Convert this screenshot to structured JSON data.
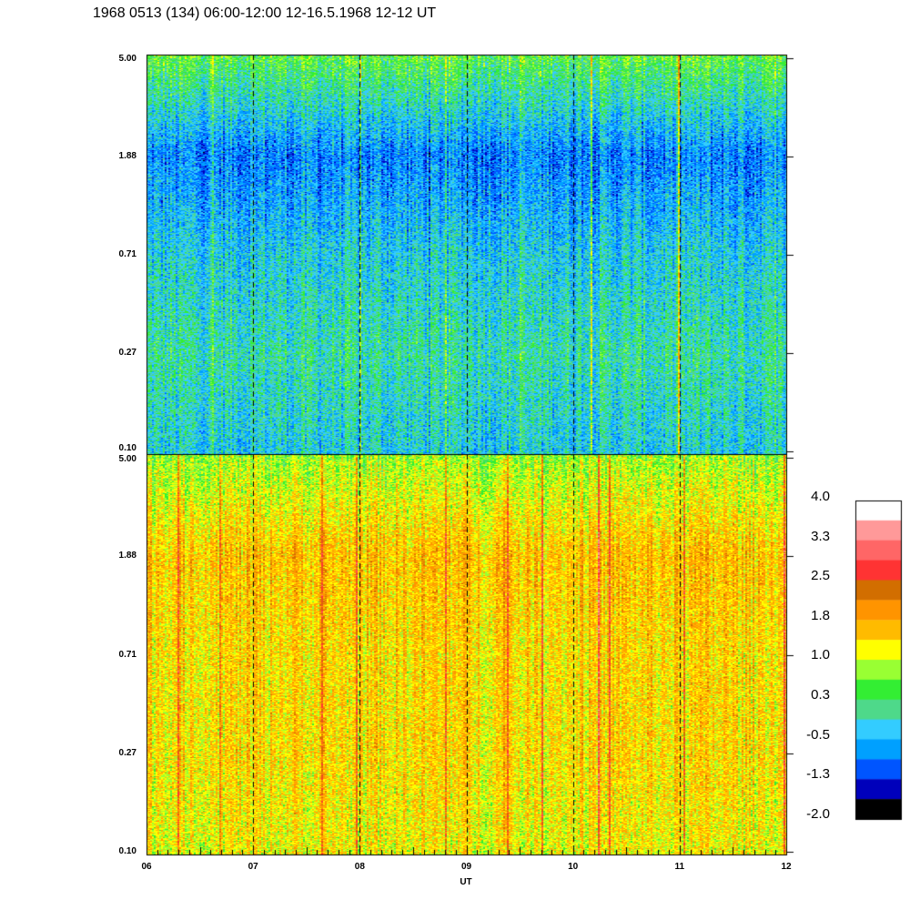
{
  "chart_data": {
    "type": "heatmap",
    "title": "1968 0513 (134) 06:00-12:00 12-16.5.1968  12-12 UT",
    "xlabel": "UT",
    "x_ticks": [
      "06",
      "07",
      "08",
      "09",
      "10",
      "11",
      "12"
    ],
    "xlim": [
      6,
      12
    ],
    "y_scale": "log",
    "ylim": [
      0.1,
      5.0
    ],
    "panels": [
      {
        "name": "upper",
        "y_ticks": [
          "5.00",
          "1.88",
          "0.71",
          "0.27",
          "0.10"
        ],
        "mean_level_at_ticks": [
          0.5,
          -0.8,
          -0.3,
          0.0,
          -0.3
        ]
      },
      {
        "name": "lower",
        "y_ticks": [
          "5.00",
          "1.88",
          "0.71",
          "0.27",
          "0.10"
        ],
        "mean_level_at_ticks": [
          0.8,
          1.6,
          1.4,
          1.4,
          1.2
        ]
      }
    ],
    "colorbar": {
      "labels": [
        "4.0",
        "3.3",
        "2.5",
        "1.8",
        "1.0",
        "0.3",
        "-0.5",
        "-1.3",
        "-2.0"
      ],
      "range": [
        -2.0,
        4.0
      ],
      "colors": [
        "#ffffff",
        "#ff9999",
        "#ff6666",
        "#ff3333",
        "#d26e00",
        "#ff9400",
        "#ffbb00",
        "#ffff00",
        "#99ff33",
        "#33ee33",
        "#4ed98a",
        "#33ccff",
        "#00a0ff",
        "#0055ff",
        "#0000bb",
        "#000000"
      ]
    }
  }
}
